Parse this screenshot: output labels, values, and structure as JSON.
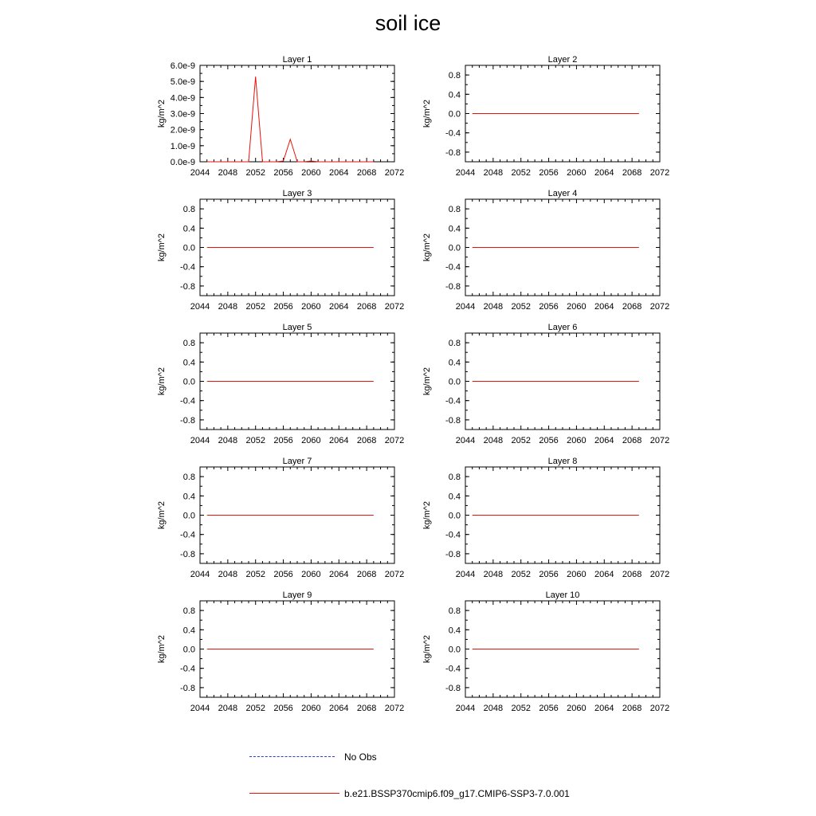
{
  "title": "soil ice",
  "colors": {
    "model": "#e8120c",
    "obs": "#2b3bd6",
    "axis": "#000000"
  },
  "legend": [
    {
      "label": "No Obs",
      "style": "dashed",
      "color": "#2b3bd6"
    },
    {
      "label": "b.e21.BSSP370cmip6.f09_g17.CMIP6-SSP3-7.0.001",
      "style": "solid",
      "color": "#e8120c"
    }
  ],
  "chart_data": [
    {
      "type": "line",
      "title": "Layer 1",
      "ylabel": "kg/m^2",
      "xlim": [
        2044,
        2072
      ],
      "xticks": [
        "2044",
        "2048",
        "2052",
        "2056",
        "2060",
        "2064",
        "2068",
        "2072"
      ],
      "ylim": [
        0,
        6e-09
      ],
      "yticks": [
        0,
        1e-09,
        2e-09,
        3e-09,
        4e-09,
        5e-09,
        6e-09
      ],
      "ytick_labels": [
        "0.0e-9",
        "1.0e-9",
        "2.0e-9",
        "3.0e-9",
        "4.0e-9",
        "5.0e-9",
        "6.0e-9"
      ],
      "series": [
        {
          "name": "b.e21.BSSP370cmip6.f09_g17.CMIP6-SSP3-7.0.001",
          "x": [
            2045,
            2046,
            2047,
            2048,
            2049,
            2050,
            2051,
            2052,
            2053,
            2054,
            2055,
            2056,
            2057,
            2058,
            2059,
            2060,
            2061,
            2062,
            2063,
            2064,
            2065,
            2066,
            2067,
            2068,
            2069
          ],
          "y": [
            0,
            0,
            0,
            0,
            0,
            0,
            0,
            5.3e-09,
            0,
            0,
            0,
            5e-11,
            1.4e-09,
            0,
            0,
            5e-11,
            0,
            0,
            0,
            0,
            0,
            0,
            0,
            0,
            0
          ]
        }
      ]
    },
    {
      "type": "line",
      "title": "Layer 2",
      "ylabel": "kg/m^2",
      "xlim": [
        2044,
        2072
      ],
      "xticks": [
        "2044",
        "2048",
        "2052",
        "2056",
        "2060",
        "2064",
        "2068",
        "2072"
      ],
      "ylim": [
        -1,
        1
      ],
      "yticks": [
        -0.8,
        -0.4,
        0,
        0.4,
        0.8
      ],
      "ytick_labels": [
        "-0.8",
        "-0.4",
        "0.0",
        "0.4",
        "0.8"
      ],
      "series": [
        {
          "name": "b.e21.BSSP370cmip6.f09_g17.CMIP6-SSP3-7.0.001",
          "x": [
            2045,
            2069
          ],
          "y": [
            0,
            0
          ]
        }
      ]
    },
    {
      "type": "line",
      "title": "Layer 3",
      "ylabel": "kg/m^2",
      "xlim": [
        2044,
        2072
      ],
      "xticks": [
        "2044",
        "2048",
        "2052",
        "2056",
        "2060",
        "2064",
        "2068",
        "2072"
      ],
      "ylim": [
        -1,
        1
      ],
      "yticks": [
        -0.8,
        -0.4,
        0,
        0.4,
        0.8
      ],
      "ytick_labels": [
        "-0.8",
        "-0.4",
        "0.0",
        "0.4",
        "0.8"
      ],
      "series": [
        {
          "name": "b.e21.BSSP370cmip6.f09_g17.CMIP6-SSP3-7.0.001",
          "x": [
            2045,
            2069
          ],
          "y": [
            0,
            0
          ]
        }
      ]
    },
    {
      "type": "line",
      "title": "Layer 4",
      "ylabel": "kg/m^2",
      "xlim": [
        2044,
        2072
      ],
      "xticks": [
        "2044",
        "2048",
        "2052",
        "2056",
        "2060",
        "2064",
        "2068",
        "2072"
      ],
      "ylim": [
        -1,
        1
      ],
      "yticks": [
        -0.8,
        -0.4,
        0,
        0.4,
        0.8
      ],
      "ytick_labels": [
        "-0.8",
        "-0.4",
        "0.0",
        "0.4",
        "0.8"
      ],
      "series": [
        {
          "name": "b.e21.BSSP370cmip6.f09_g17.CMIP6-SSP3-7.0.001",
          "x": [
            2045,
            2069
          ],
          "y": [
            0,
            0
          ]
        }
      ]
    },
    {
      "type": "line",
      "title": "Layer 5",
      "ylabel": "kg/m^2",
      "xlim": [
        2044,
        2072
      ],
      "xticks": [
        "2044",
        "2048",
        "2052",
        "2056",
        "2060",
        "2064",
        "2068",
        "2072"
      ],
      "ylim": [
        -1,
        1
      ],
      "yticks": [
        -0.8,
        -0.4,
        0,
        0.4,
        0.8
      ],
      "ytick_labels": [
        "-0.8",
        "-0.4",
        "0.0",
        "0.4",
        "0.8"
      ],
      "series": [
        {
          "name": "b.e21.BSSP370cmip6.f09_g17.CMIP6-SSP3-7.0.001",
          "x": [
            2045,
            2069
          ],
          "y": [
            0,
            0
          ]
        }
      ]
    },
    {
      "type": "line",
      "title": "Layer 6",
      "ylabel": "kg/m^2",
      "xlim": [
        2044,
        2072
      ],
      "xticks": [
        "2044",
        "2048",
        "2052",
        "2056",
        "2060",
        "2064",
        "2068",
        "2072"
      ],
      "ylim": [
        -1,
        1
      ],
      "yticks": [
        -0.8,
        -0.4,
        0,
        0.4,
        0.8
      ],
      "ytick_labels": [
        "-0.8",
        "-0.4",
        "0.0",
        "0.4",
        "0.8"
      ],
      "series": [
        {
          "name": "b.e21.BSSP370cmip6.f09_g17.CMIP6-SSP3-7.0.001",
          "x": [
            2045,
            2069
          ],
          "y": [
            0,
            0
          ]
        }
      ]
    },
    {
      "type": "line",
      "title": "Layer 7",
      "ylabel": "kg/m^2",
      "xlim": [
        2044,
        2072
      ],
      "xticks": [
        "2044",
        "2048",
        "2052",
        "2056",
        "2060",
        "2064",
        "2068",
        "2072"
      ],
      "ylim": [
        -1,
        1
      ],
      "yticks": [
        -0.8,
        -0.4,
        0,
        0.4,
        0.8
      ],
      "ytick_labels": [
        "-0.8",
        "-0.4",
        "0.0",
        "0.4",
        "0.8"
      ],
      "series": [
        {
          "name": "b.e21.BSSP370cmip6.f09_g17.CMIP6-SSP3-7.0.001",
          "x": [
            2045,
            2069
          ],
          "y": [
            0,
            0
          ]
        }
      ]
    },
    {
      "type": "line",
      "title": "Layer 8",
      "ylabel": "kg/m^2",
      "xlim": [
        2044,
        2072
      ],
      "xticks": [
        "2044",
        "2048",
        "2052",
        "2056",
        "2060",
        "2064",
        "2068",
        "2072"
      ],
      "ylim": [
        -1,
        1
      ],
      "yticks": [
        -0.8,
        -0.4,
        0,
        0.4,
        0.8
      ],
      "ytick_labels": [
        "-0.8",
        "-0.4",
        "0.0",
        "0.4",
        "0.8"
      ],
      "series": [
        {
          "name": "b.e21.BSSP370cmip6.f09_g17.CMIP6-SSP3-7.0.001",
          "x": [
            2045,
            2069
          ],
          "y": [
            0,
            0
          ]
        }
      ]
    },
    {
      "type": "line",
      "title": "Layer 9",
      "ylabel": "kg/m^2",
      "xlim": [
        2044,
        2072
      ],
      "xticks": [
        "2044",
        "2048",
        "2052",
        "2056",
        "2060",
        "2064",
        "2068",
        "2072"
      ],
      "ylim": [
        -1,
        1
      ],
      "yticks": [
        -0.8,
        -0.4,
        0,
        0.4,
        0.8
      ],
      "ytick_labels": [
        "-0.8",
        "-0.4",
        "0.0",
        "0.4",
        "0.8"
      ],
      "series": [
        {
          "name": "b.e21.BSSP370cmip6.f09_g17.CMIP6-SSP3-7.0.001",
          "x": [
            2045,
            2069
          ],
          "y": [
            0,
            0
          ]
        }
      ]
    },
    {
      "type": "line",
      "title": "Layer 10",
      "ylabel": "kg/m^2",
      "xlim": [
        2044,
        2072
      ],
      "xticks": [
        "2044",
        "2048",
        "2052",
        "2056",
        "2060",
        "2064",
        "2068",
        "2072"
      ],
      "ylim": [
        -1,
        1
      ],
      "yticks": [
        -0.8,
        -0.4,
        0,
        0.4,
        0.8
      ],
      "ytick_labels": [
        "-0.8",
        "-0.4",
        "0.0",
        "0.4",
        "0.8"
      ],
      "series": [
        {
          "name": "b.e21.BSSP370cmip6.f09_g17.CMIP6-SSP3-7.0.001",
          "x": [
            2045,
            2069
          ],
          "y": [
            0,
            0
          ]
        }
      ]
    }
  ]
}
